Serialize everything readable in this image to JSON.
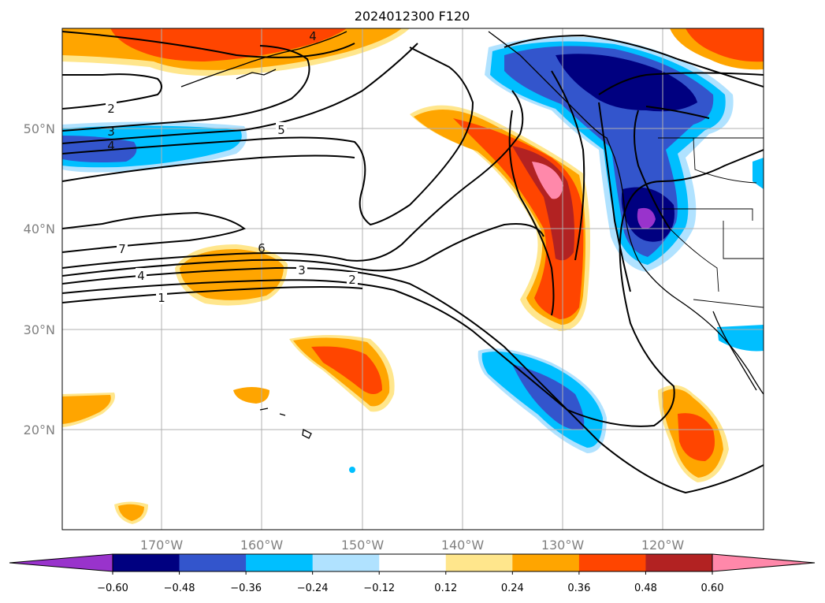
{
  "title": "2024012300 F120",
  "map": {
    "lon_ticks": [
      "170°W",
      "160°W",
      "150°W",
      "140°W",
      "130°W",
      "120°W"
    ],
    "lat_ticks": [
      "50°N",
      "40°N",
      "30°N",
      "20°N"
    ],
    "contour_labels": [
      "4",
      "2",
      "3",
      "4",
      "5",
      "7",
      "6",
      "4",
      "3",
      "2",
      "1"
    ],
    "features": [
      "coastline",
      "country-borders",
      "state-borders",
      "gridlines"
    ]
  },
  "colorbar": {
    "ticks": [
      "−0.60",
      "−0.48",
      "−0.36",
      "−0.24",
      "−0.12",
      "0.12",
      "0.24",
      "0.36",
      "0.48",
      "0.60"
    ],
    "colors": [
      "#9933cc",
      "#000080",
      "#3355cc",
      "#00bfff",
      "#b0e2ff",
      "#ffffff",
      "#ffe68c",
      "#ffa500",
      "#ff4500",
      "#b22222",
      "#ff88aa"
    ],
    "extend": "both"
  }
}
